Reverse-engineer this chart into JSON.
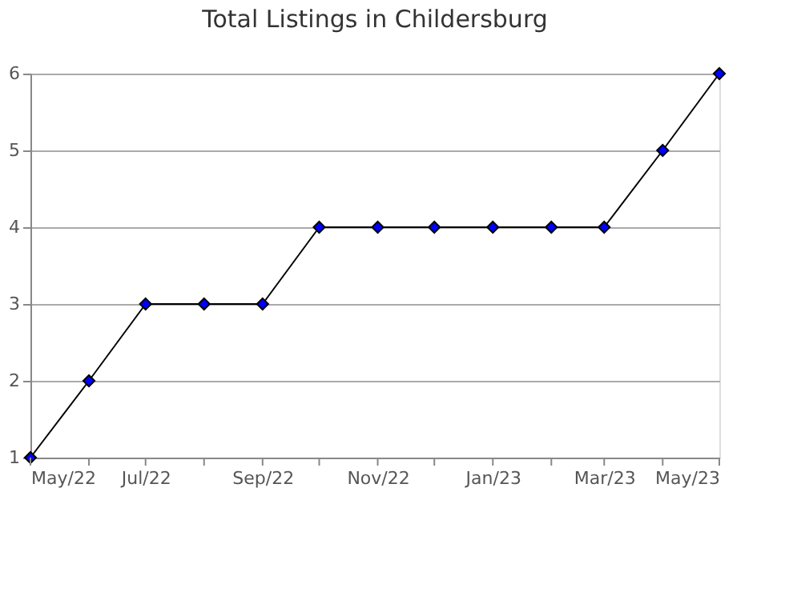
{
  "chart_data": {
    "type": "line",
    "title": "Total Listings in Childersburg",
    "x": [
      "2022-05",
      "2022-06",
      "2022-07",
      "2022-08",
      "2022-09",
      "2022-10",
      "2022-11",
      "2022-12",
      "2023-01",
      "2023-02",
      "2023-03",
      "2023-04",
      "2023-05"
    ],
    "series": [
      {
        "color": "#0000ff",
        "values": [
          1,
          2,
          3,
          3,
          3,
          4,
          4,
          4,
          4,
          4,
          4,
          5,
          6
        ]
      }
    ],
    "xlim": [
      "2022-05",
      "2023-05"
    ],
    "xticks": [
      {
        "value": "2022-05",
        "label": "May/22"
      },
      {
        "value": "2022-06",
        "label": null
      },
      {
        "value": "2022-07",
        "label": "Jul/22"
      },
      {
        "value": "2022-08",
        "label": null
      },
      {
        "value": "2022-09",
        "label": "Sep/22"
      },
      {
        "value": "2022-10",
        "label": null
      },
      {
        "value": "2022-11",
        "label": "Nov/22"
      },
      {
        "value": "2022-12",
        "label": null
      },
      {
        "value": "2023-01",
        "label": "Jan/23"
      },
      {
        "value": "2023-02",
        "label": null
      },
      {
        "value": "2023-03",
        "label": "Mar/23"
      },
      {
        "value": "2023-04",
        "label": null
      },
      {
        "value": "2023-05",
        "label": "May/23"
      }
    ],
    "ylim": [
      1,
      6
    ],
    "yticks": [
      1,
      2,
      3,
      4,
      5,
      6
    ],
    "grid": "y",
    "marker": "diamond",
    "line_style": "solid"
  }
}
